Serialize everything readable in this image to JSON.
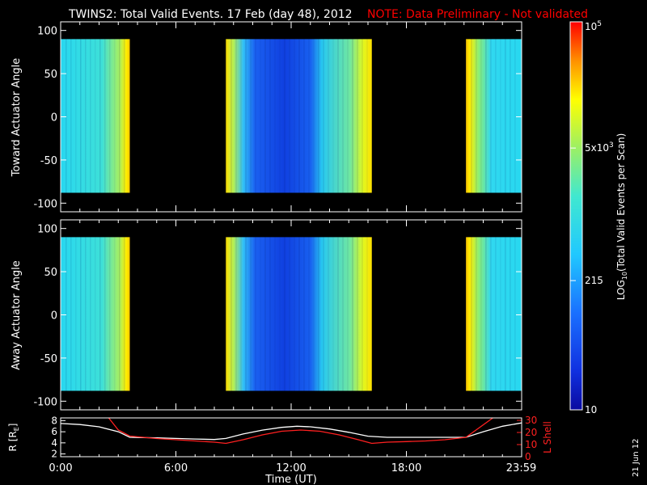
{
  "title": "TWINS2: Total Valid Events. 17 Feb (day  48), 2012",
  "note": "NOTE: Data Preliminary - Not validated",
  "date_stamp": "21 Jun 12",
  "colors": {
    "background": "#000000",
    "note": "#ff0000",
    "r_line": "#ffffff",
    "lshell_line": "#ff2020"
  },
  "colorbar": {
    "label": "LOG",
    "label_sub": "10",
    "label_rest": "(Total Valid  Events per Scan)",
    "ticks": [
      {
        "label": "10",
        "value": 10
      },
      {
        "label": "215",
        "value": 215
      },
      {
        "label": "5x10",
        "sup": "3",
        "value": 5000
      },
      {
        "label": "10",
        "sup": "5",
        "value": 100000
      }
    ],
    "range": [
      10,
      100000
    ],
    "scale": "log"
  },
  "chart_data": [
    {
      "type": "heatmap",
      "ylabel": "Toward Actuator Angle",
      "ylim": [
        -110,
        110
      ],
      "yticks": [
        100,
        50,
        0,
        -50,
        -100
      ],
      "xlim": [
        0,
        24
      ],
      "angle_range": [
        -88,
        90
      ],
      "segments": [
        {
          "start": 0.0,
          "end": 3.6,
          "profile": "cyan-to-yellow"
        },
        {
          "start": 8.6,
          "end": 16.2,
          "profile": "yellow-blue-yellow"
        },
        {
          "start": 21.1,
          "end": 24.0,
          "profile": "yellow-to-cyan"
        }
      ]
    },
    {
      "type": "heatmap",
      "ylabel": "Away Actuator Angle",
      "ylim": [
        -110,
        110
      ],
      "yticks": [
        100,
        50,
        0,
        -50,
        -100
      ],
      "xlim": [
        0,
        24
      ],
      "angle_range": [
        -88,
        90
      ],
      "segments": [
        {
          "start": 0.0,
          "end": 3.6,
          "profile": "cyan-to-yellow"
        },
        {
          "start": 8.6,
          "end": 16.2,
          "profile": "yellow-blue-yellow"
        },
        {
          "start": 21.1,
          "end": 24.0,
          "profile": "yellow-to-cyan"
        }
      ]
    },
    {
      "type": "line",
      "ylabel": "R [R",
      "ylabel_sub": "E",
      "ylabel_end": "]",
      "ylim": [
        1.5,
        8.5
      ],
      "yticks": [
        8,
        6,
        4,
        2
      ],
      "y2label": "L Shell",
      "y2lim": [
        0,
        32
      ],
      "y2ticks": [
        30,
        20,
        10,
        0
      ],
      "xlabel": "Time (UT)",
      "xlim": [
        0,
        24
      ],
      "xticks": [
        {
          "label": "0:00",
          "value": 0
        },
        {
          "label": "6:00",
          "value": 6
        },
        {
          "label": "12:00",
          "value": 12
        },
        {
          "label": "18:00",
          "value": 18
        },
        {
          "label": "23:59",
          "value": 23.98
        }
      ],
      "series": [
        {
          "axis": "left",
          "x": [
            0,
            1,
            2,
            3,
            3.6,
            5,
            6,
            7,
            8,
            8.6,
            9.5,
            10.5,
            11.5,
            12.3,
            13,
            14,
            15,
            16,
            17,
            18,
            19,
            20,
            21.1,
            22,
            23,
            24
          ],
          "y": [
            7.5,
            7.3,
            6.9,
            6.0,
            5.0,
            4.9,
            4.8,
            4.7,
            4.6,
            4.8,
            5.6,
            6.3,
            6.8,
            7.0,
            6.9,
            6.5,
            5.9,
            5.2,
            5.0,
            5.0,
            5.0,
            5.0,
            5.0,
            6.0,
            7.0,
            7.6
          ]
        },
        {
          "axis": "right",
          "x": [
            2.5,
            3.0,
            3.6,
            5,
            6,
            7,
            8,
            8.6,
            9.5,
            10.5,
            11.5,
            12.5,
            13.5,
            14.5,
            15.5,
            16.2,
            17,
            18,
            19,
            20,
            21.1,
            22.5
          ],
          "y": [
            32,
            22,
            17,
            15,
            14,
            13,
            12,
            11,
            14,
            18,
            21,
            22,
            21,
            18,
            14,
            11,
            12,
            12.5,
            13,
            14,
            16,
            32
          ]
        }
      ]
    }
  ]
}
